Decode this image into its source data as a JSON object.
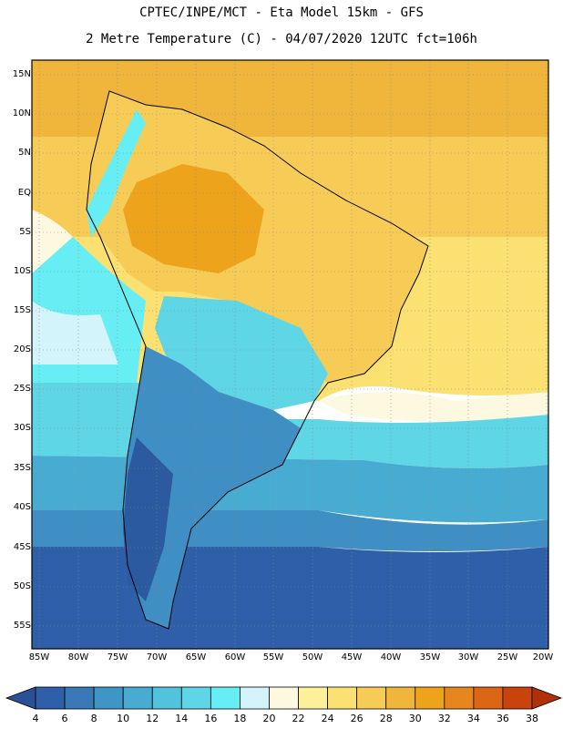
{
  "header": {
    "line1": "CPTEC/INPE/MCT -  Eta Model 15km - GFS",
    "line2": "2 Metre Temperature (C) - 04/07/2020 12UTC fct=106h"
  },
  "axes": {
    "lat_labels": [
      "15N",
      "10N",
      "5N",
      "EQ",
      "5S",
      "10S",
      "15S",
      "20S",
      "25S",
      "30S",
      "35S",
      "40S",
      "45S",
      "50S",
      "55S"
    ],
    "lat_values": [
      15,
      10,
      5,
      0,
      -5,
      -10,
      -15,
      -20,
      -25,
      -30,
      -35,
      -40,
      -45,
      -50,
      -55
    ],
    "lon_labels": [
      "85W",
      "80W",
      "75W",
      "70W",
      "65W",
      "60W",
      "55W",
      "50W",
      "45W",
      "40W",
      "35W",
      "30W",
      "25W",
      "20W"
    ],
    "lon_values": [
      -85,
      -80,
      -75,
      -70,
      -65,
      -60,
      -55,
      -50,
      -45,
      -40,
      -35,
      -30,
      -25,
      -20
    ]
  },
  "colorbar": {
    "ticks": [
      "4",
      "6",
      "8",
      "10",
      "12",
      "14",
      "16",
      "18",
      "20",
      "22",
      "24",
      "26",
      "28",
      "30",
      "32",
      "34",
      "36",
      "38"
    ],
    "colors": [
      "#2f5fa8",
      "#3a79b8",
      "#3f95c6",
      "#48acd2",
      "#52c3dc",
      "#5fd6e6",
      "#66eef4",
      "#d4f4fb",
      "#fdf8e0",
      "#fdf09a",
      "#fbe172",
      "#f6cc57",
      "#f0b63c",
      "#eea31d",
      "#e7861f",
      "#db6616",
      "#c8440c"
    ],
    "under_color": "#2c5096",
    "over_color": "#b23008"
  },
  "map_colors": {
    "cold": "#2c5aa0",
    "cool": "#3f8fc4",
    "mid": "#4bb3d4",
    "cyan": "#5ed6e6",
    "bright_cyan": "#66eef4",
    "pale": "#d4f4fb",
    "cream": "#fdf8e0",
    "yellow": "#fbe172",
    "gold": "#f6cc57",
    "orange": "#f0b63c",
    "deep_orange": "#eea31d"
  }
}
